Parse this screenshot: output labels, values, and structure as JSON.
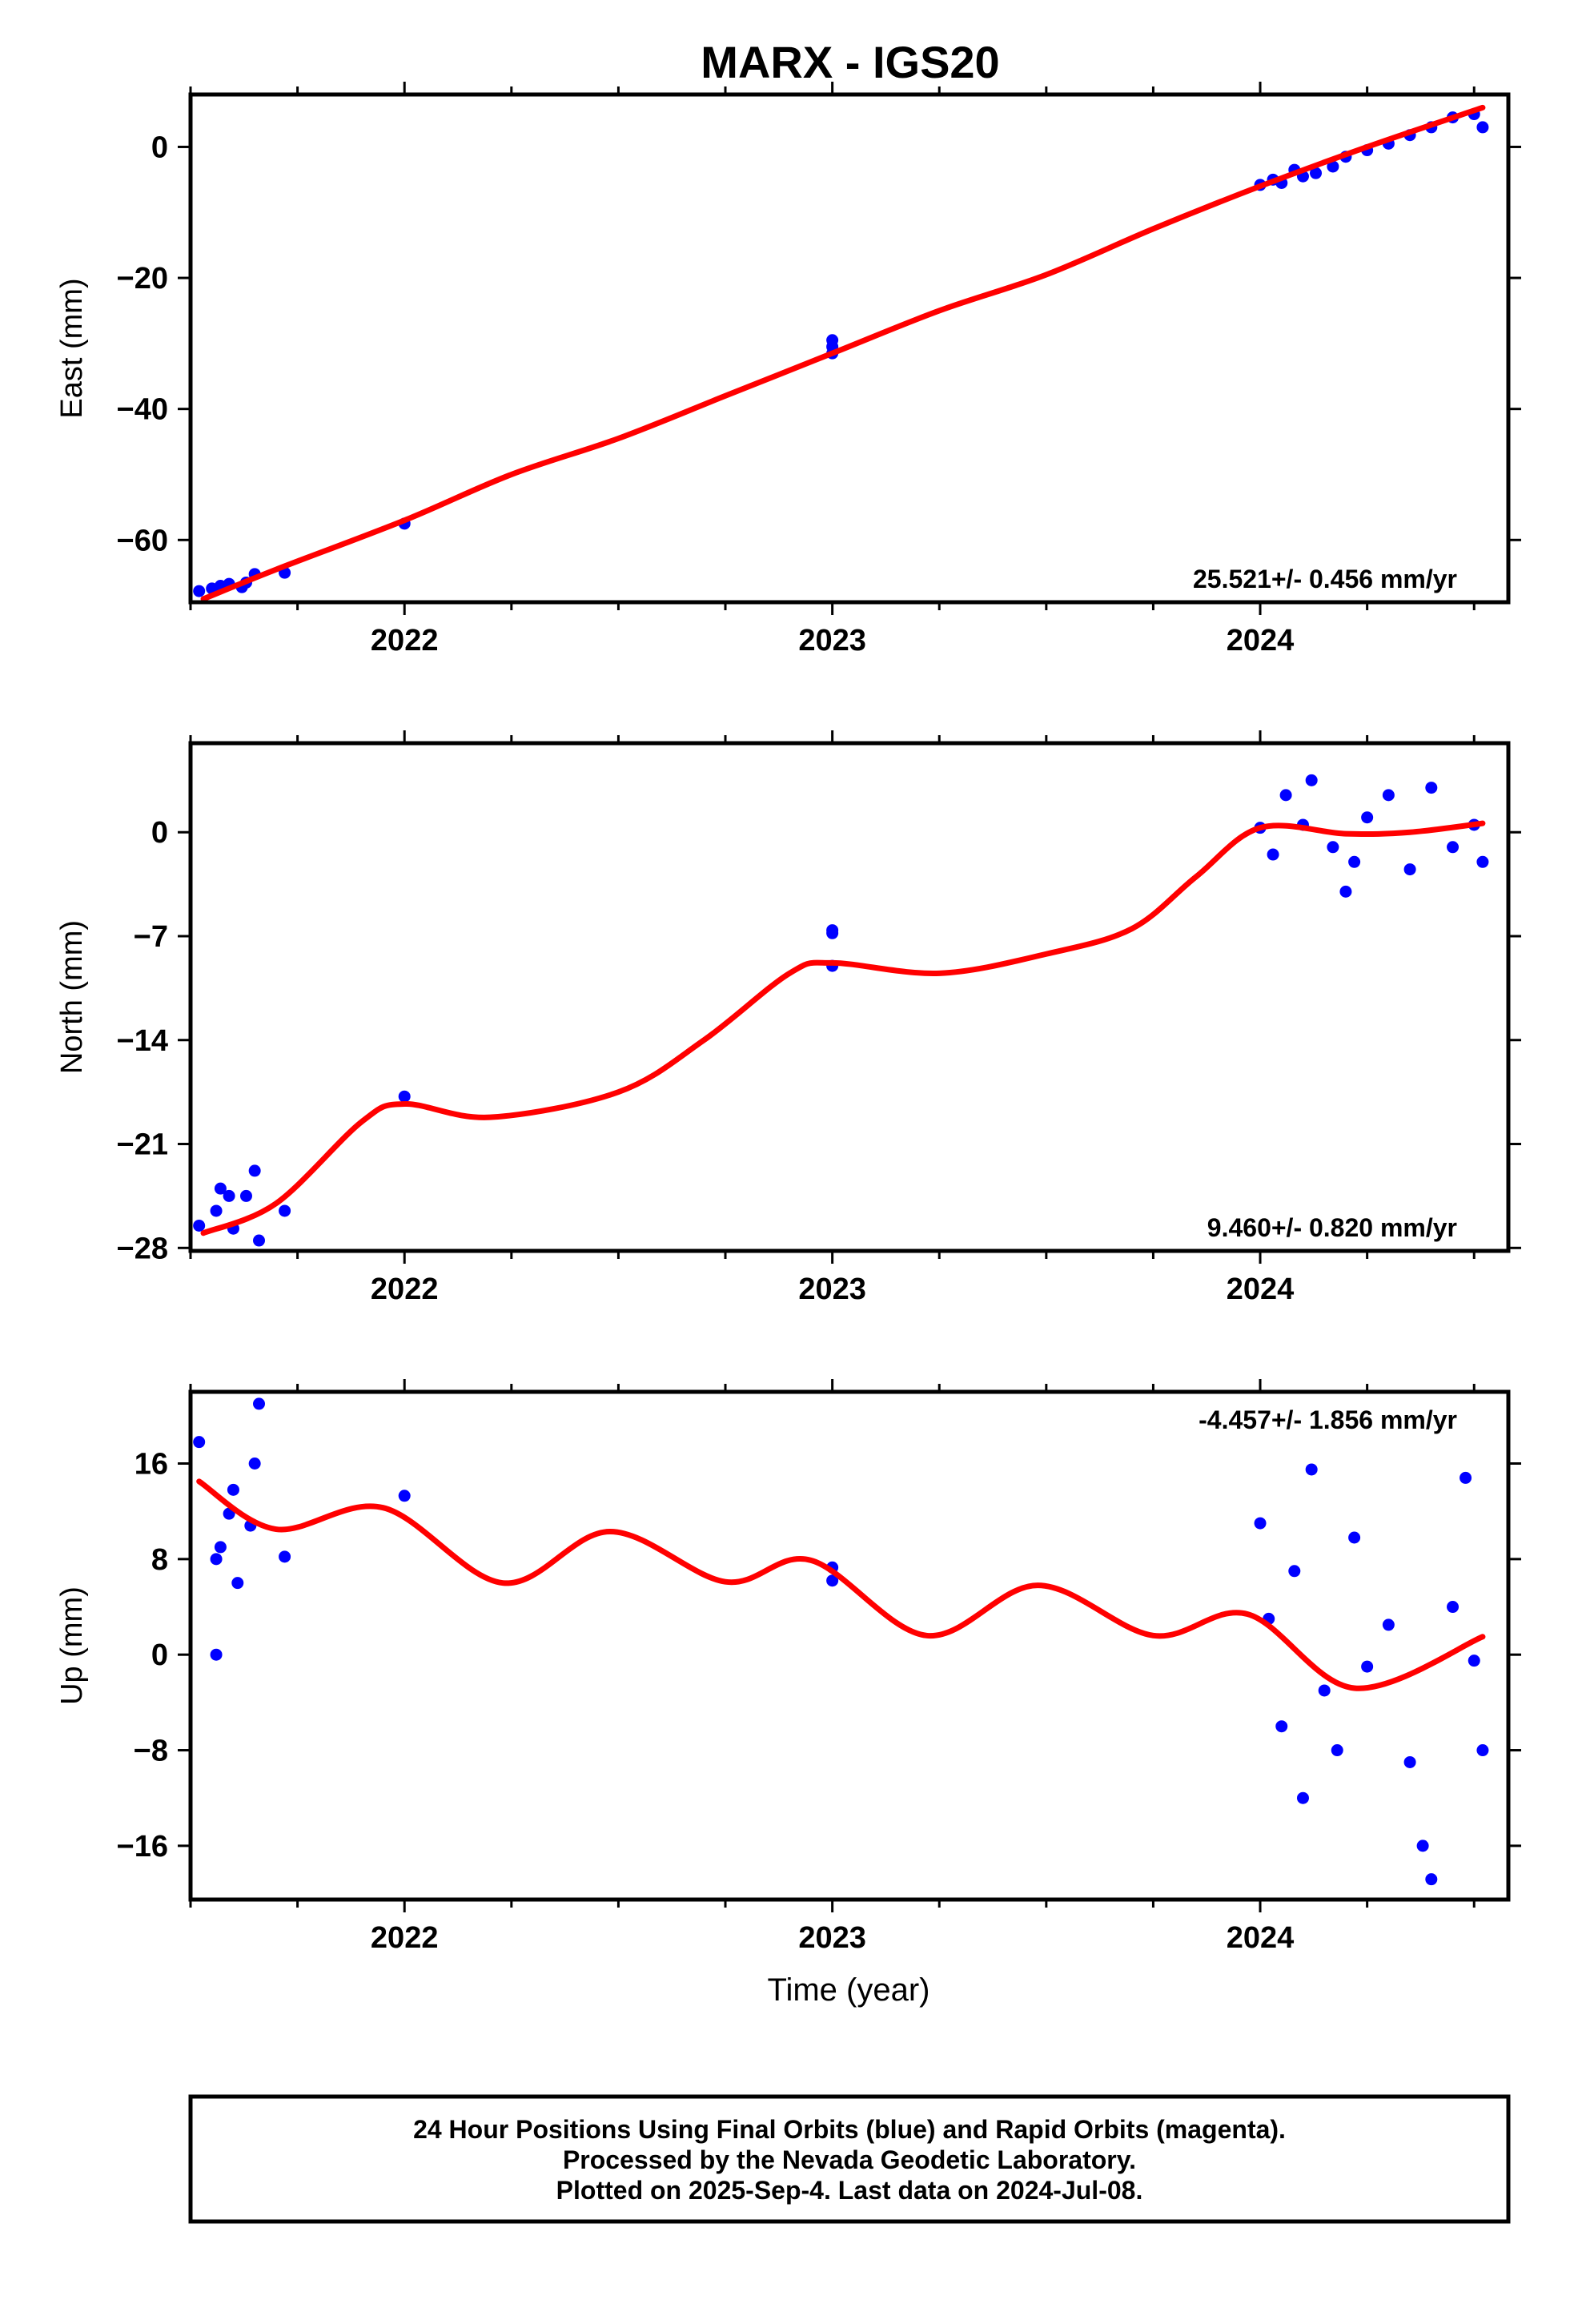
{
  "figure": {
    "title": "MARX - IGS20",
    "xlabel": "Time (year)",
    "footer": [
      "24 Hour Positions Using Final Orbits (blue) and Rapid Orbits (magenta).",
      "Processed by the Nevada Geodetic Laboratory.",
      "Plotted on 2025-Sep-4. Last data on 2024-Jul-08."
    ]
  },
  "colors": {
    "points_final": "#0000ff",
    "model": "#ff0000",
    "axes": "#000000"
  },
  "chart_data": [
    {
      "type": "scatter",
      "panel": "east",
      "ylabel": "East (mm)",
      "rate_label": "25.521+/- 0.456 mm/yr",
      "rate_position": "bottom-right",
      "xlim": [
        2021.5,
        2024.58
      ],
      "ylim": [
        -69.5,
        8
      ],
      "xticks": [
        2022,
        2023,
        2024
      ],
      "xtick_labels": [
        "2022",
        "2023",
        "2024"
      ],
      "yticks": [
        -60,
        -40,
        -20,
        0
      ],
      "ytick_labels": [
        "−60",
        "−40",
        "−20",
        "0"
      ],
      "grid": false,
      "series": [
        {
          "kind": "points",
          "x": [
            2021.52,
            2021.55,
            2021.57,
            2021.59,
            2021.62,
            2021.63,
            2021.65,
            2021.72,
            2022.0,
            2023.0,
            2023.0,
            2023.0,
            2024.0,
            2024.03,
            2024.05,
            2024.08,
            2024.1,
            2024.13,
            2024.17,
            2024.2,
            2024.25,
            2024.3,
            2024.35,
            2024.4,
            2024.45,
            2024.5,
            2024.52
          ],
          "y": [
            -67.8,
            -67.4,
            -67.0,
            -66.7,
            -67.2,
            -66.5,
            -65.2,
            -65.0,
            -57.5,
            -31.5,
            -30.5,
            -29.5,
            -5.8,
            -5.0,
            -5.5,
            -3.5,
            -4.5,
            -4.0,
            -3.0,
            -1.5,
            -0.5,
            0.5,
            1.8,
            3.0,
            4.5,
            5.0,
            3.0
          ]
        },
        {
          "kind": "line",
          "x": [
            2021.53,
            2021.7,
            2022.0,
            2022.25,
            2022.5,
            2022.75,
            2023.0,
            2023.25,
            2023.5,
            2023.75,
            2024.0,
            2024.25,
            2024.52
          ],
          "y": [
            -69.0,
            -64.5,
            -57.0,
            -50.0,
            -44.5,
            -38.0,
            -31.5,
            -25.0,
            -19.5,
            -12.5,
            -6.0,
            0.0,
            6.0
          ]
        }
      ]
    },
    {
      "type": "scatter",
      "panel": "north",
      "ylabel": "North (mm)",
      "rate_label": "9.460+/- 0.820 mm/yr",
      "rate_position": "bottom-right",
      "xlim": [
        2021.5,
        2024.58
      ],
      "ylim": [
        -28.2,
        6
      ],
      "xticks": [
        2022,
        2023,
        2024
      ],
      "xtick_labels": [
        "2022",
        "2023",
        "2024"
      ],
      "yticks": [
        -28,
        -21,
        -14,
        -7,
        0
      ],
      "ytick_labels": [
        "−28",
        "−21",
        "−14",
        "−7",
        "0"
      ],
      "grid": false,
      "series": [
        {
          "kind": "points",
          "x": [
            2021.52,
            2021.56,
            2021.57,
            2021.59,
            2021.6,
            2021.63,
            2021.65,
            2021.66,
            2021.72,
            2022.0,
            2023.0,
            2023.0,
            2023.0,
            2024.0,
            2024.03,
            2024.06,
            2024.1,
            2024.12,
            2024.17,
            2024.2,
            2024.22,
            2024.25,
            2024.3,
            2024.35,
            2024.4,
            2024.45,
            2024.5,
            2024.52
          ],
          "y": [
            -26.5,
            -25.5,
            -24.0,
            -24.5,
            -26.7,
            -24.5,
            -22.8,
            -27.5,
            -25.5,
            -17.8,
            -9.0,
            -6.8,
            -6.6,
            0.3,
            -1.5,
            2.5,
            0.5,
            3.5,
            -1.0,
            -4.0,
            -2.0,
            1.0,
            2.5,
            -2.5,
            3.0,
            -1.0,
            0.5,
            -2.0
          ]
        },
        {
          "kind": "line",
          "x": [
            2021.53,
            2021.7,
            2021.9,
            2022.0,
            2022.2,
            2022.5,
            2022.7,
            2022.9,
            2023.0,
            2023.25,
            2023.5,
            2023.7,
            2023.85,
            2024.0,
            2024.2,
            2024.35,
            2024.52
          ],
          "y": [
            -27.0,
            -25.0,
            -19.5,
            -18.3,
            -19.2,
            -17.5,
            -14.0,
            -9.5,
            -8.8,
            -9.5,
            -8.2,
            -6.5,
            -3.0,
            0.3,
            -0.1,
            0.0,
            0.6
          ]
        }
      ]
    },
    {
      "type": "scatter",
      "panel": "up",
      "ylabel": "Up (mm)",
      "rate_label": "-4.457+/- 1.856 mm/yr",
      "rate_position": "top-right",
      "xlim": [
        2021.5,
        2024.58
      ],
      "ylim": [
        -20.5,
        22
      ],
      "xticks": [
        2022,
        2023,
        2024
      ],
      "xtick_labels": [
        "2022",
        "2023",
        "2024"
      ],
      "yticks": [
        -16,
        -8,
        0,
        8,
        16
      ],
      "ytick_labels": [
        "−16",
        "−8",
        "0",
        "8",
        "16"
      ],
      "grid": false,
      "series": [
        {
          "kind": "points",
          "x": [
            2021.52,
            2021.56,
            2021.56,
            2021.57,
            2021.59,
            2021.6,
            2021.61,
            2021.64,
            2021.65,
            2021.66,
            2021.72,
            2022.0,
            2023.0,
            2023.0,
            2024.0,
            2024.02,
            2024.05,
            2024.08,
            2024.1,
            2024.12,
            2024.15,
            2024.18,
            2024.22,
            2024.25,
            2024.3,
            2024.35,
            2024.38,
            2024.4,
            2024.45,
            2024.48,
            2024.5,
            2024.52
          ],
          "y": [
            17.8,
            0.0,
            8.0,
            9.0,
            11.8,
            13.8,
            6.0,
            10.8,
            16.0,
            21.0,
            8.2,
            13.3,
            7.3,
            6.2,
            11.0,
            3.0,
            -6.0,
            7.0,
            -12.0,
            15.5,
            -3.0,
            -8.0,
            9.8,
            -1.0,
            2.5,
            -9.0,
            -16.0,
            -18.8,
            4.0,
            14.8,
            -0.5,
            -8.0
          ]
        },
        {
          "kind": "line",
          "x": [
            2021.52,
            2021.7,
            2021.95,
            2022.23,
            2022.48,
            2022.75,
            2022.95,
            2023.22,
            2023.48,
            2023.75,
            2023.97,
            2024.22,
            2024.52
          ],
          "y": [
            14.5,
            10.5,
            12.3,
            6.0,
            10.3,
            6.1,
            7.9,
            1.6,
            5.8,
            1.6,
            3.4,
            -2.8,
            1.5
          ]
        }
      ]
    }
  ]
}
